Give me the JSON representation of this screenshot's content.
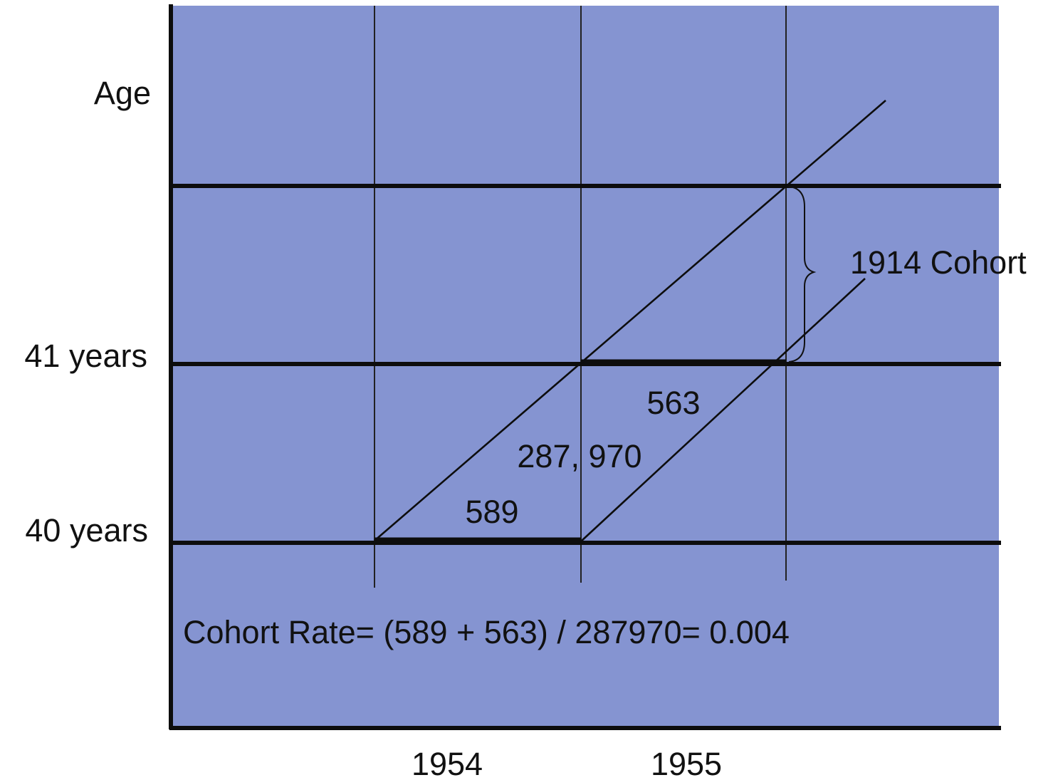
{
  "diagram": {
    "colors": {
      "panel": "#8594d1",
      "ink": "#0d0d0d",
      "background": "#ffffff"
    },
    "y_axis": {
      "title": "Age",
      "age_labels": [
        "40 years",
        "41 years"
      ]
    },
    "x_axis": {
      "year_labels": [
        "1954",
        "1955"
      ]
    },
    "cohort_label": "1914 Cohort",
    "cell_values": {
      "deaths_1954": "589",
      "population": "287, 970",
      "deaths_1955": "563"
    },
    "formula": "Cohort Rate= (589 + 563) / 287970= 0.004"
  }
}
